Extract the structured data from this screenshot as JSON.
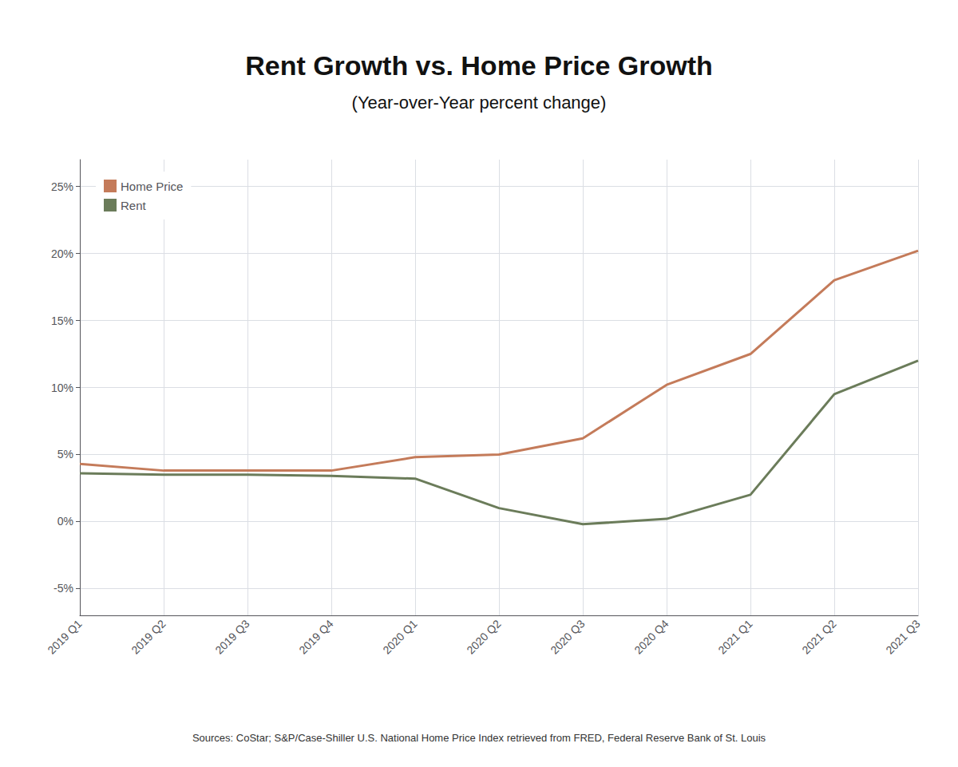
{
  "chart_data": {
    "type": "line",
    "title": "Rent Growth vs. Home Price Growth",
    "subtitle": "(Year-over-Year percent change)",
    "source": "Sources: CoStar; S&P/Case-Shiller U.S. National Home Price Index retrieved from FRED, Federal Reserve Bank of St. Louis",
    "categories": [
      "2019 Q1",
      "2019 Q2",
      "2019 Q3",
      "2019 Q4",
      "2020 Q1",
      "2020 Q2",
      "2020 Q3",
      "2020 Q4",
      "2021 Q1",
      "2021 Q2",
      "2021 Q3"
    ],
    "series": [
      {
        "name": "Home Price",
        "color": "#c47b5a",
        "values": [
          4.3,
          3.8,
          3.8,
          3.8,
          4.8,
          5.0,
          6.2,
          10.2,
          12.5,
          18.0,
          20.2
        ]
      },
      {
        "name": "Rent",
        "color": "#6b7c5a",
        "values": [
          3.6,
          3.5,
          3.5,
          3.4,
          3.2,
          1.0,
          -0.2,
          0.2,
          2.0,
          9.5,
          12.0
        ]
      }
    ],
    "ylim": [
      -7,
      27
    ],
    "yticks": [
      {
        "value": -5,
        "label": "-5%"
      },
      {
        "value": 0,
        "label": "0%"
      },
      {
        "value": 5,
        "label": "5%"
      },
      {
        "value": 10,
        "label": "10%"
      },
      {
        "value": 15,
        "label": "15%"
      },
      {
        "value": 20,
        "label": "20%"
      },
      {
        "value": 25,
        "label": "25%"
      }
    ],
    "grid": true,
    "legend": "upper left"
  }
}
